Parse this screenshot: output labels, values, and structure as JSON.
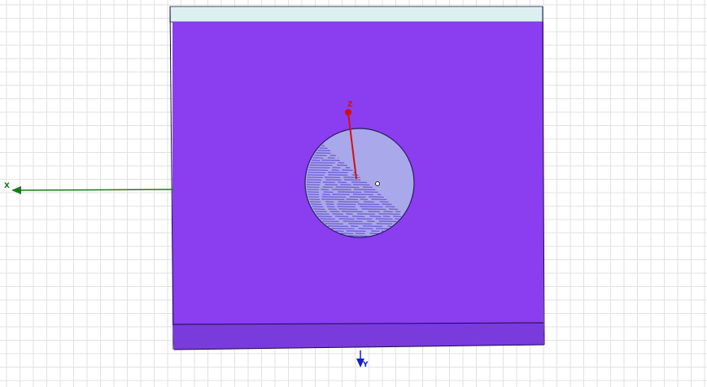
{
  "viewport": {
    "background_color": "#ffffff",
    "grid_color": "#e2e2e2"
  },
  "model": {
    "substrate_color": "#8a3ef0",
    "substrate_edge_color": "#1a0a40",
    "top_face_color": "#dcf0f2",
    "bottom_face_color": "#7a3bdc",
    "port_circle_color": "#a9a8ea",
    "port_hatch_color": "#5a40c8"
  },
  "axes": {
    "x": {
      "label": "X",
      "color": "#1a7a1a"
    },
    "y": {
      "label": "Y",
      "color": "#1020c8"
    },
    "z": {
      "label": "Z",
      "color": "#d01010"
    }
  }
}
